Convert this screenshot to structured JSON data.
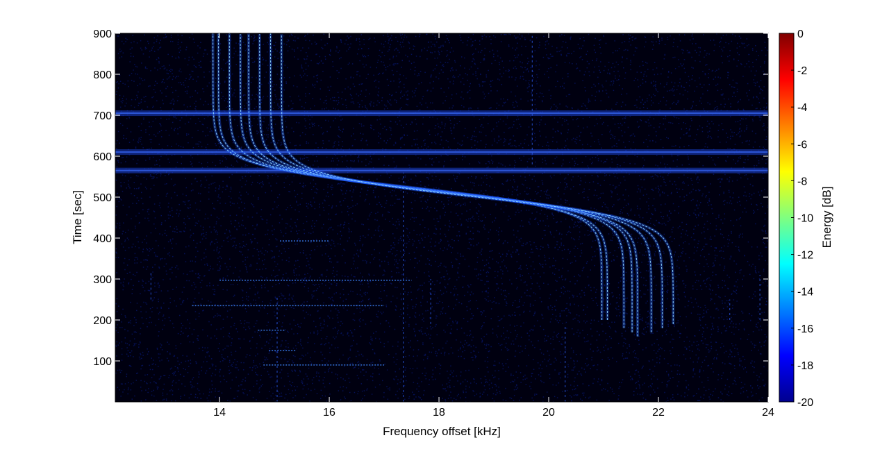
{
  "chart_data": {
    "type": "heatmap",
    "title": "",
    "xlabel": "Frequency offset [kHz]",
    "ylabel": "Time [sec]",
    "xlim": [
      12.1,
      24
    ],
    "ylim": [
      0,
      900
    ],
    "xticks": [
      14,
      16,
      18,
      20,
      22,
      24
    ],
    "yticks": [
      100,
      200,
      300,
      400,
      500,
      600,
      700,
      800,
      900
    ],
    "grid": false,
    "colormap": "jet",
    "colorbar": {
      "label": "Energy [dB]",
      "range": [
        -20,
        0
      ],
      "ticks": [
        0,
        -2,
        -4,
        -6,
        -8,
        -10,
        -12,
        -14,
        -16,
        -18,
        -20
      ]
    },
    "background_color": "#000010",
    "noise_color": "#0a1e8c",
    "horizontal_bands_sec": [
      565,
      610,
      705
    ],
    "doppler_traces": [
      {
        "high_freq_khz": 13.95,
        "low_freq_khz": 20.9,
        "center_sec": 525,
        "t_start_sec": 200,
        "t_end_sec": 900
      },
      {
        "high_freq_khz": 14.05,
        "low_freq_khz": 21.0,
        "center_sec": 522,
        "t_start_sec": 200,
        "t_end_sec": 900
      },
      {
        "high_freq_khz": 14.25,
        "low_freq_khz": 21.3,
        "center_sec": 518,
        "t_start_sec": 180,
        "t_end_sec": 900
      },
      {
        "high_freq_khz": 14.45,
        "low_freq_khz": 21.45,
        "center_sec": 515,
        "t_start_sec": 170,
        "t_end_sec": 900
      },
      {
        "high_freq_khz": 14.6,
        "low_freq_khz": 21.55,
        "center_sec": 512,
        "t_start_sec": 160,
        "t_end_sec": 900
      },
      {
        "high_freq_khz": 14.8,
        "low_freq_khz": 21.8,
        "center_sec": 508,
        "t_start_sec": 170,
        "t_end_sec": 900
      },
      {
        "high_freq_khz": 15.0,
        "low_freq_khz": 22.0,
        "center_sec": 505,
        "t_start_sec": 180,
        "t_end_sec": 900
      },
      {
        "high_freq_khz": 15.2,
        "low_freq_khz": 22.2,
        "center_sec": 500,
        "t_start_sec": 190,
        "t_end_sec": 900
      }
    ],
    "horizontal_streaks": [
      {
        "t_sec": 90,
        "f_start_khz": 14.8,
        "f_end_khz": 17.0
      },
      {
        "t_sec": 125,
        "f_start_khz": 14.9,
        "f_end_khz": 15.4
      },
      {
        "t_sec": 175,
        "f_start_khz": 14.7,
        "f_end_khz": 15.2
      },
      {
        "t_sec": 235,
        "f_start_khz": 13.5,
        "f_end_khz": 17.0
      },
      {
        "t_sec": 297,
        "f_start_khz": 14.0,
        "f_end_khz": 17.5
      },
      {
        "t_sec": 393,
        "f_start_khz": 15.1,
        "f_end_khz": 16.0
      }
    ],
    "vertical_streaks": [
      {
        "f_khz": 17.35,
        "t_start_sec": 0,
        "t_end_sec": 560
      },
      {
        "f_khz": 17.85,
        "t_start_sec": 190,
        "t_end_sec": 300
      },
      {
        "f_khz": 19.7,
        "t_start_sec": 580,
        "t_end_sec": 900
      },
      {
        "f_khz": 20.3,
        "t_start_sec": 0,
        "t_end_sec": 190
      },
      {
        "f_khz": 23.3,
        "t_start_sec": 200,
        "t_end_sec": 250
      },
      {
        "f_khz": 23.85,
        "t_start_sec": 200,
        "t_end_sec": 310
      },
      {
        "f_khz": 15.05,
        "t_start_sec": 0,
        "t_end_sec": 260
      },
      {
        "f_khz": 12.75,
        "t_start_sec": 250,
        "t_end_sec": 320
      }
    ]
  }
}
